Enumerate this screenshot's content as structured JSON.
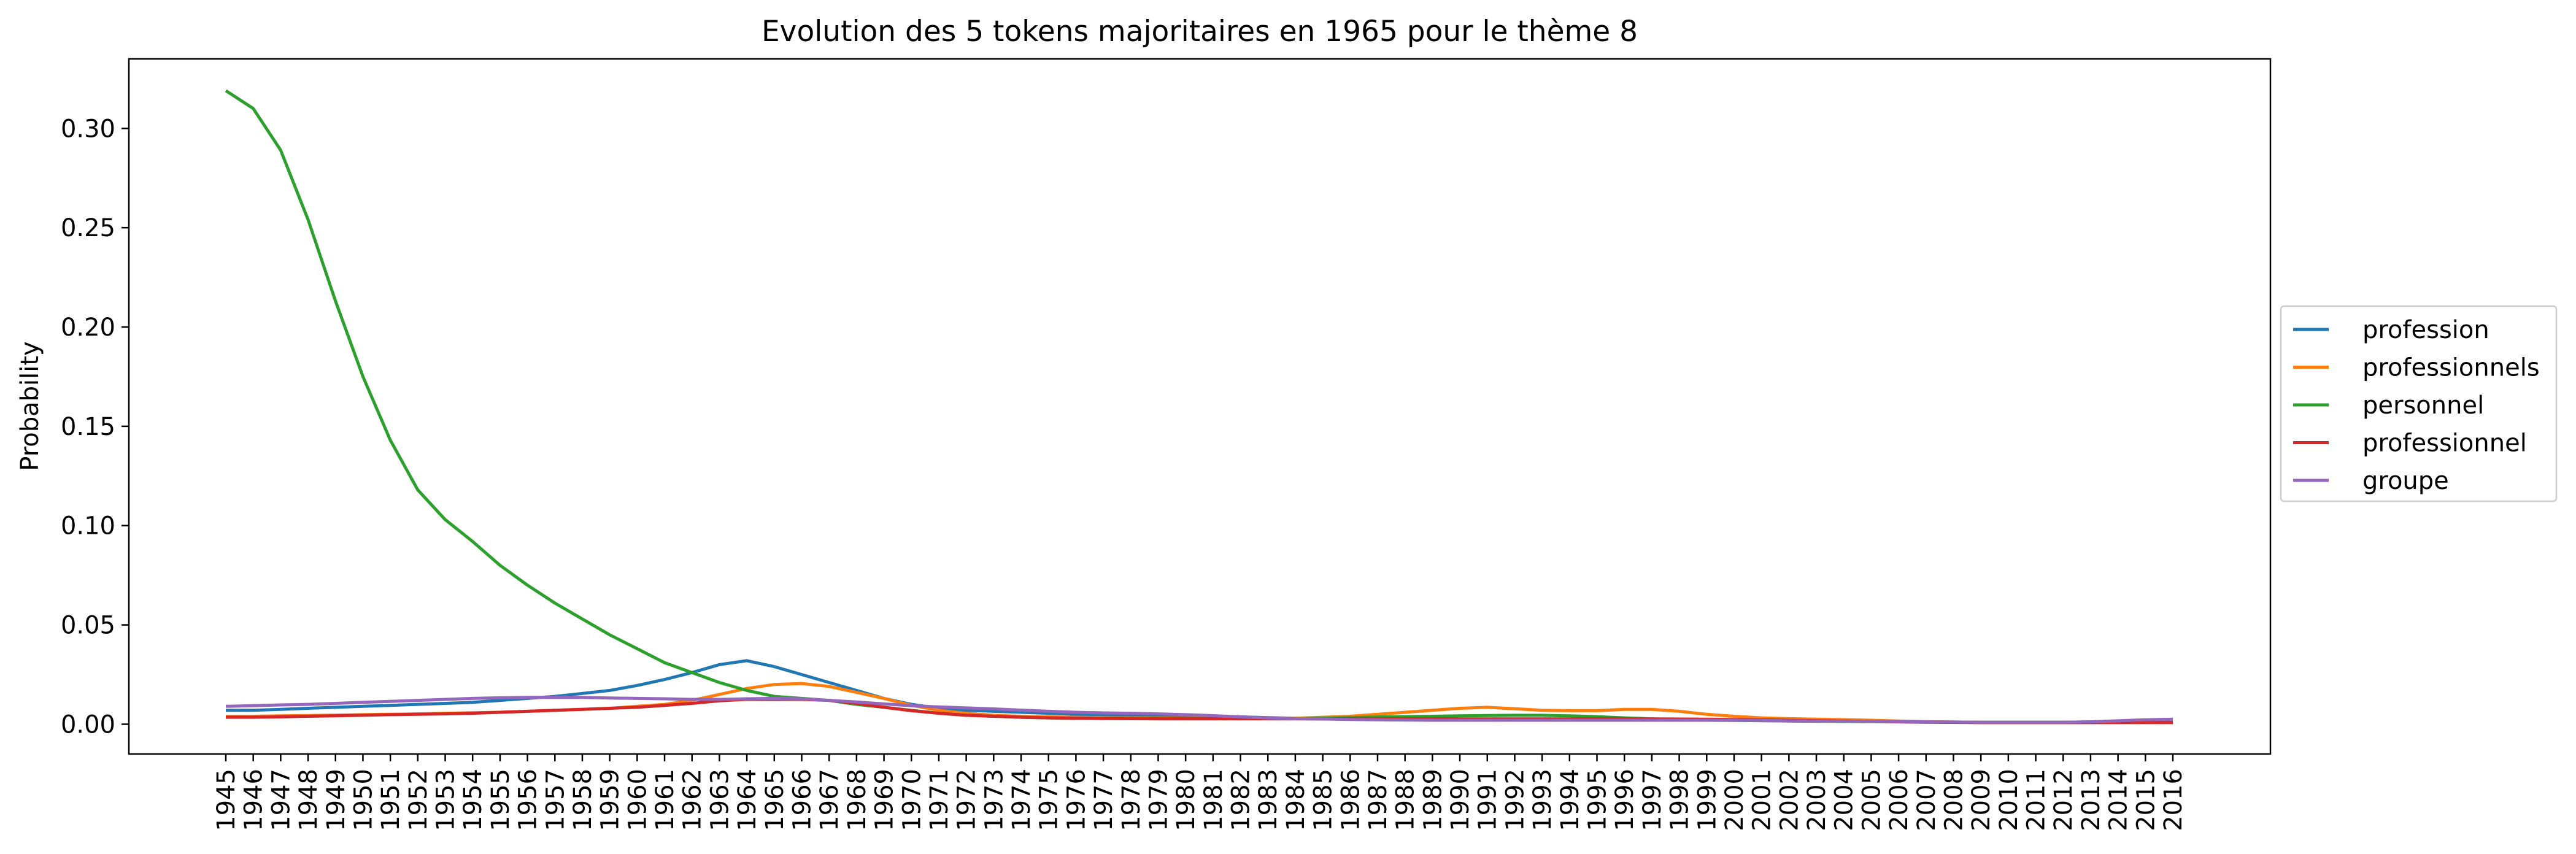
{
  "chart_data": {
    "type": "line",
    "title": "Evolution des 5 tokens majoritaires en 1965 pour le thème 8",
    "xlabel": "",
    "ylabel": "Probability",
    "ylim": [
      -0.015,
      0.335
    ],
    "y_ticks": [
      "0.00",
      "0.05",
      "0.10",
      "0.15",
      "0.20",
      "0.25",
      "0.30"
    ],
    "grid": false,
    "legend_position": "center-right-outside",
    "categories": [
      "1945",
      "1946",
      "1947",
      "1948",
      "1949",
      "1950",
      "1951",
      "1952",
      "1953",
      "1954",
      "1955",
      "1956",
      "1957",
      "1958",
      "1959",
      "1960",
      "1961",
      "1962",
      "1963",
      "1964",
      "1965",
      "1966",
      "1967",
      "1968",
      "1969",
      "1970",
      "1971",
      "1972",
      "1973",
      "1974",
      "1975",
      "1976",
      "1977",
      "1978",
      "1979",
      "1980",
      "1981",
      "1982",
      "1983",
      "1984",
      "1985",
      "1986",
      "1987",
      "1988",
      "1989",
      "1990",
      "1991",
      "1992",
      "1993",
      "1994",
      "1995",
      "1996",
      "1997",
      "1998",
      "1999",
      "2000",
      "2001",
      "2002",
      "2003",
      "2004",
      "2005",
      "2006",
      "2007",
      "2008",
      "2009",
      "2010",
      "2011",
      "2012",
      "2013",
      "2014",
      "2015",
      "2016"
    ],
    "series": [
      {
        "name": "profession",
        "color": "#1f77b4",
        "values": [
          0.007,
          0.007,
          0.0075,
          0.008,
          0.0085,
          0.009,
          0.0095,
          0.01,
          0.0105,
          0.011,
          0.012,
          0.013,
          0.014,
          0.0155,
          0.017,
          0.0195,
          0.0225,
          0.026,
          0.03,
          0.032,
          0.029,
          0.025,
          0.021,
          0.017,
          0.013,
          0.01,
          0.008,
          0.007,
          0.0065,
          0.006,
          0.0055,
          0.005,
          0.0048,
          0.0046,
          0.0044,
          0.0042,
          0.004,
          0.0037,
          0.0033,
          0.003,
          0.003,
          0.0028,
          0.0027,
          0.0026,
          0.0025,
          0.0025,
          0.0025,
          0.0025,
          0.0024,
          0.0023,
          0.0022,
          0.0021,
          0.002,
          0.002,
          0.002,
          0.0019,
          0.0018,
          0.0017,
          0.0016,
          0.0015,
          0.0014,
          0.0013,
          0.0012,
          0.0011,
          0.001,
          0.001,
          0.001,
          0.001,
          0.0012,
          0.0015,
          0.0018,
          0.002
        ]
      },
      {
        "name": "professionnels",
        "color": "#ff7f0e",
        "values": [
          0.004,
          0.004,
          0.0042,
          0.0044,
          0.0046,
          0.0048,
          0.005,
          0.0052,
          0.0055,
          0.0058,
          0.006,
          0.0065,
          0.007,
          0.0075,
          0.008,
          0.009,
          0.01,
          0.012,
          0.015,
          0.018,
          0.02,
          0.0205,
          0.019,
          0.016,
          0.013,
          0.0095,
          0.007,
          0.0055,
          0.0045,
          0.004,
          0.0037,
          0.0035,
          0.0033,
          0.0032,
          0.0031,
          0.003,
          0.003,
          0.003,
          0.003,
          0.003,
          0.0035,
          0.004,
          0.005,
          0.006,
          0.007,
          0.008,
          0.0085,
          0.0078,
          0.007,
          0.0068,
          0.0068,
          0.0075,
          0.0075,
          0.0065,
          0.005,
          0.004,
          0.0032,
          0.0028,
          0.0025,
          0.0023,
          0.002,
          0.0016,
          0.0013,
          0.0011,
          0.001,
          0.001,
          0.001,
          0.001,
          0.001,
          0.001,
          0.001,
          0.001
        ]
      },
      {
        "name": "personnel",
        "color": "#2ca02c",
        "values": [
          0.319,
          0.31,
          0.289,
          0.254,
          0.213,
          0.175,
          0.143,
          0.118,
          0.103,
          0.092,
          0.08,
          0.07,
          0.061,
          0.053,
          0.045,
          0.038,
          0.031,
          0.026,
          0.021,
          0.017,
          0.014,
          0.013,
          0.012,
          0.01,
          0.0085,
          0.007,
          0.0055,
          0.0045,
          0.004,
          0.0035,
          0.0032,
          0.003,
          0.0029,
          0.0028,
          0.0028,
          0.0028,
          0.0028,
          0.0028,
          0.0028,
          0.0028,
          0.003,
          0.0033,
          0.0036,
          0.0038,
          0.004,
          0.0042,
          0.0044,
          0.0045,
          0.0045,
          0.0042,
          0.0038,
          0.0032,
          0.0027,
          0.0024,
          0.0022,
          0.002,
          0.0018,
          0.0016,
          0.0015,
          0.0014,
          0.0013,
          0.0012,
          0.0011,
          0.001,
          0.001,
          0.001,
          0.001,
          0.001,
          0.001,
          0.001,
          0.001,
          0.001
        ]
      },
      {
        "name": "professionnel",
        "color": "#d62728",
        "values": [
          0.0035,
          0.0035,
          0.0037,
          0.004,
          0.0042,
          0.0045,
          0.0048,
          0.005,
          0.0052,
          0.0055,
          0.006,
          0.0065,
          0.007,
          0.0075,
          0.008,
          0.0085,
          0.0095,
          0.0105,
          0.0118,
          0.0125,
          0.0125,
          0.0125,
          0.012,
          0.0105,
          0.0085,
          0.0068,
          0.0055,
          0.0045,
          0.004,
          0.0035,
          0.0032,
          0.003,
          0.0029,
          0.0028,
          0.0027,
          0.0027,
          0.0027,
          0.0027,
          0.0027,
          0.0027,
          0.0027,
          0.0027,
          0.0027,
          0.0027,
          0.0027,
          0.0027,
          0.0027,
          0.0027,
          0.0027,
          0.0027,
          0.0027,
          0.0027,
          0.0027,
          0.0026,
          0.0025,
          0.0024,
          0.0022,
          0.002,
          0.0018,
          0.0016,
          0.0014,
          0.0012,
          0.001,
          0.0009,
          0.0008,
          0.0008,
          0.0008,
          0.0008,
          0.0008,
          0.0008,
          0.0008,
          0.0008
        ]
      },
      {
        "name": "groupe",
        "color": "#9467bd",
        "values": [
          0.009,
          0.0093,
          0.0097,
          0.01,
          0.0105,
          0.011,
          0.0115,
          0.012,
          0.0125,
          0.013,
          0.0133,
          0.0135,
          0.0135,
          0.0135,
          0.0132,
          0.013,
          0.0128,
          0.0125,
          0.0125,
          0.0128,
          0.013,
          0.0128,
          0.012,
          0.0112,
          0.0102,
          0.0093,
          0.0087,
          0.0082,
          0.0077,
          0.0071,
          0.0065,
          0.006,
          0.0057,
          0.0055,
          0.0052,
          0.0048,
          0.0043,
          0.0037,
          0.0032,
          0.0028,
          0.0026,
          0.0024,
          0.0022,
          0.0021,
          0.002,
          0.002,
          0.002,
          0.002,
          0.002,
          0.002,
          0.002,
          0.002,
          0.002,
          0.002,
          0.002,
          0.002,
          0.0019,
          0.0017,
          0.0016,
          0.0015,
          0.0014,
          0.0013,
          0.0012,
          0.0011,
          0.001,
          0.001,
          0.001,
          0.001,
          0.0012,
          0.0017,
          0.0022,
          0.0025
        ]
      }
    ]
  }
}
